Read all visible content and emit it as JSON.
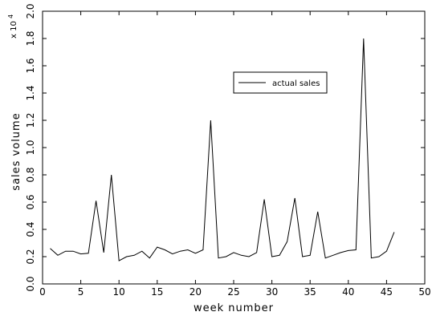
{
  "chart_data": {
    "type": "line",
    "xlabel": "week number",
    "ylabel": "sales volume",
    "y_multiplier": "x 10",
    "y_multiplier_exp": "4",
    "xlim": [
      0,
      50
    ],
    "ylim": [
      0,
      2.0
    ],
    "xticks": [
      0,
      5,
      10,
      15,
      20,
      25,
      30,
      35,
      40,
      45,
      50
    ],
    "yticks": [
      "0.0",
      "0.2",
      "0.4",
      "0.6",
      "0.8",
      "1.0",
      "1.2",
      "1.4",
      "1.6",
      "1.8",
      "2.0"
    ],
    "legend_position": "upper-right",
    "grid": false,
    "series": [
      {
        "name": "actual sales",
        "color": "#000000",
        "x": [
          1,
          2,
          3,
          4,
          5,
          6,
          7,
          8,
          9,
          10,
          11,
          12,
          13,
          14,
          15,
          16,
          17,
          18,
          19,
          20,
          21,
          22,
          23,
          24,
          25,
          26,
          27,
          28,
          29,
          30,
          31,
          32,
          33,
          34,
          35,
          36,
          37,
          38,
          39,
          40,
          41,
          42,
          43,
          44,
          45,
          46
        ],
        "y": [
          0.26,
          0.21,
          0.24,
          0.24,
          0.22,
          0.225,
          0.61,
          0.23,
          0.8,
          0.17,
          0.2,
          0.21,
          0.24,
          0.19,
          0.27,
          0.25,
          0.22,
          0.24,
          0.25,
          0.225,
          0.25,
          1.2,
          0.19,
          0.2,
          0.23,
          0.21,
          0.2,
          0.23,
          0.62,
          0.2,
          0.21,
          0.31,
          0.63,
          0.2,
          0.21,
          0.53,
          0.19,
          0.21,
          0.23,
          0.245,
          0.25,
          1.8,
          0.19,
          0.2,
          0.24,
          0.38
        ]
      }
    ]
  }
}
